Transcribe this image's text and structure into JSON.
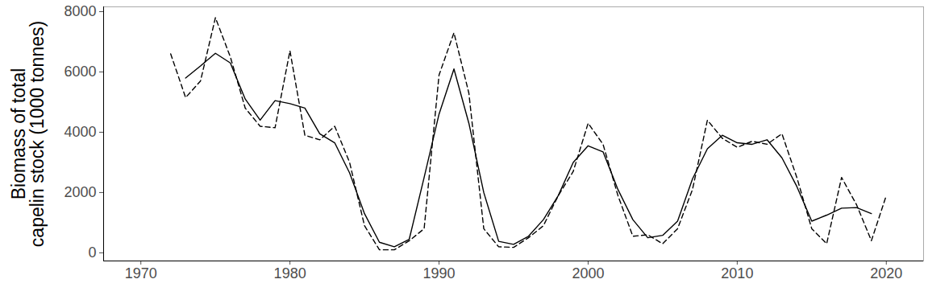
{
  "chart_data": {
    "type": "line",
    "y_label": "Biomass of total\ncapelin stock (1000 tonnes)",
    "x": [
      1972,
      1973,
      1974,
      1975,
      1976,
      1977,
      1978,
      1979,
      1980,
      1981,
      1982,
      1983,
      1984,
      1985,
      1986,
      1987,
      1988,
      1989,
      1990,
      1991,
      1992,
      1993,
      1994,
      1995,
      1996,
      1997,
      1998,
      1999,
      2000,
      2001,
      2002,
      2003,
      2004,
      2005,
      2006,
      2007,
      2008,
      2009,
      2010,
      2011,
      2012,
      2013,
      2014,
      2015,
      2016,
      2017,
      2018,
      2019,
      2020
    ],
    "series": [
      {
        "color": "#000000",
        "line_style": "solid",
        "values": [
          null,
          5800,
          6200,
          6620,
          6300,
          5100,
          4400,
          5050,
          4950,
          4800,
          3950,
          3650,
          2650,
          1300,
          350,
          200,
          450,
          2500,
          4600,
          6100,
          4300,
          2000,
          380,
          280,
          550,
          1100,
          1900,
          3000,
          3550,
          3350,
          2100,
          1100,
          500,
          580,
          1050,
          2450,
          3450,
          3900,
          3650,
          3600,
          3750,
          3150,
          2200,
          1050,
          1250,
          1480,
          1500,
          1300,
          null
        ]
      },
      {
        "color": "#000000",
        "line_style": "dashed",
        "values": [
          6600,
          5150,
          5700,
          7800,
          6500,
          4800,
          4200,
          4150,
          6700,
          3900,
          3750,
          4200,
          3000,
          900,
          100,
          100,
          400,
          800,
          5900,
          7300,
          5300,
          800,
          200,
          180,
          500,
          900,
          1900,
          2700,
          4300,
          3600,
          1900,
          550,
          600,
          300,
          800,
          2100,
          4400,
          3800,
          3500,
          3700,
          3600,
          3950,
          2500,
          800,
          300,
          2500,
          1600,
          400,
          1900
        ]
      }
    ],
    "xlim": [
      1967.5,
      2022.5
    ],
    "xticks": [
      1970,
      1980,
      1990,
      2000,
      2010,
      2020
    ],
    "ylim": [
      -270,
      8160
    ],
    "yticks": [
      0,
      2000,
      4000,
      6000,
      8000
    ],
    "grid": false
  }
}
